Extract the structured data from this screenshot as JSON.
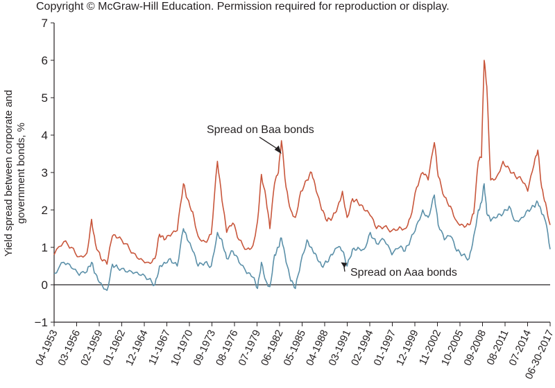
{
  "copyright": "Copyright © McGraw-Hill Education. Permission required for reproduction or display.",
  "chart_data": {
    "type": "line",
    "title": "",
    "xlabel": "",
    "ylabel": "Yield spread between corporate and government bonds, %",
    "ylim": [
      -1,
      7
    ],
    "yticks": [
      "−1",
      "0",
      "1",
      "2",
      "3",
      "4",
      "5",
      "6",
      "7"
    ],
    "xlim": [
      1953.25,
      2017.5
    ],
    "grid": false,
    "zero_line": true,
    "x_tick_labels": [
      "04-1953",
      "03-1956",
      "02-1959",
      "01-1962",
      "12-1964",
      "11-1967",
      "10-1970",
      "09-1973",
      "08-1976",
      "07-1979",
      "06-1982",
      "05-1985",
      "04-1988",
      "03-1991",
      "02-1994",
      "01-1997",
      "12-1999",
      "11-2002",
      "10-2005",
      "09-2008",
      "08-2011",
      "07-2014",
      "06-30-2017"
    ],
    "x": [
      1953.25,
      1954.5,
      1955.5,
      1956.5,
      1957.5,
      1958.1,
      1958.6,
      1959.3,
      1960.1,
      1960.8,
      1961.5,
      1962.5,
      1963.5,
      1964.5,
      1965.5,
      1966.3,
      1966.9,
      1967.5,
      1968.3,
      1969.2,
      1970.0,
      1970.5,
      1971.2,
      1971.9,
      1972.8,
      1973.6,
      1974.4,
      1975.0,
      1975.6,
      1976.4,
      1977.2,
      1978.2,
      1979.0,
      1979.6,
      1980.1,
      1980.7,
      1981.2,
      1981.8,
      1982.3,
      1982.7,
      1983.3,
      1983.9,
      1984.5,
      1985.2,
      1986.0,
      1986.6,
      1987.2,
      1987.9,
      1988.6,
      1989.3,
      1990.0,
      1990.6,
      1991.2,
      1991.9,
      1992.6,
      1993.4,
      1994.2,
      1995.0,
      1996.0,
      1997.0,
      1998.0,
      1998.7,
      1999.4,
      2000.2,
      2001.0,
      2001.7,
      2002.5,
      2003.0,
      2003.8,
      2004.6,
      2005.4,
      2006.2,
      2007.0,
      2007.6,
      2008.2,
      2008.6,
      2008.95,
      2009.3,
      2009.8,
      2010.6,
      2011.4,
      2012.2,
      2013.0,
      2013.8,
      2014.6,
      2015.4,
      2015.9,
      2016.4,
      2016.9,
      2017.5
    ],
    "series": [
      {
        "name": "Spread on Baa bonds",
        "color": "#c8553a",
        "values": [
          0.8,
          1.15,
          1.0,
          0.75,
          0.85,
          1.75,
          1.1,
          0.7,
          0.55,
          1.3,
          1.25,
          1.1,
          0.85,
          0.7,
          0.6,
          0.7,
          1.35,
          1.2,
          1.3,
          1.45,
          2.7,
          2.3,
          1.95,
          1.3,
          1.15,
          1.35,
          3.3,
          2.25,
          1.4,
          1.65,
          1.2,
          0.95,
          1.05,
          1.7,
          2.95,
          2.3,
          1.5,
          2.7,
          3.0,
          3.85,
          2.6,
          2.0,
          1.8,
          2.5,
          2.8,
          3.0,
          2.5,
          2.0,
          1.7,
          1.8,
          2.1,
          2.5,
          1.8,
          2.3,
          2.2,
          2.0,
          1.85,
          1.5,
          1.55,
          1.45,
          1.55,
          1.5,
          1.8,
          2.6,
          3.0,
          2.8,
          3.8,
          2.9,
          2.35,
          2.1,
          1.7,
          1.6,
          1.6,
          1.9,
          3.3,
          3.4,
          6.0,
          5.3,
          2.8,
          2.9,
          3.3,
          3.1,
          2.9,
          2.8,
          2.5,
          3.2,
          3.6,
          2.6,
          2.2,
          1.6
        ]
      },
      {
        "name": "Spread on Aaa bonds",
        "color": "#5a8fa8",
        "values": [
          0.3,
          0.6,
          0.45,
          0.25,
          0.35,
          0.6,
          0.3,
          0.05,
          -0.15,
          0.55,
          0.45,
          0.35,
          0.3,
          0.25,
          0.15,
          0.0,
          0.5,
          0.6,
          0.7,
          0.5,
          1.5,
          1.2,
          0.9,
          0.5,
          0.6,
          0.5,
          1.4,
          1.2,
          0.7,
          0.9,
          0.6,
          0.3,
          0.2,
          -0.1,
          0.6,
          0.1,
          -0.05,
          0.8,
          1.0,
          1.25,
          0.6,
          0.1,
          -0.1,
          0.6,
          1.2,
          1.0,
          0.8,
          0.5,
          0.6,
          0.8,
          1.0,
          0.9,
          0.5,
          0.95,
          1.0,
          0.95,
          1.4,
          1.1,
          1.2,
          0.8,
          1.0,
          0.9,
          1.2,
          1.6,
          2.0,
          1.8,
          2.4,
          1.6,
          1.2,
          1.3,
          0.9,
          0.8,
          0.7,
          1.3,
          2.0,
          2.2,
          2.7,
          1.9,
          1.7,
          1.8,
          1.9,
          2.1,
          1.7,
          1.8,
          2.0,
          2.1,
          2.2,
          1.9,
          1.7,
          0.95
        ]
      }
    ],
    "annotations": [
      {
        "text": "Spread on Baa bonds",
        "target_x": 1982.7,
        "target_y": 3.5
      },
      {
        "text": "Spread on Aaa bonds",
        "target_x": 1990.4,
        "target_y": 0.6
      }
    ]
  }
}
